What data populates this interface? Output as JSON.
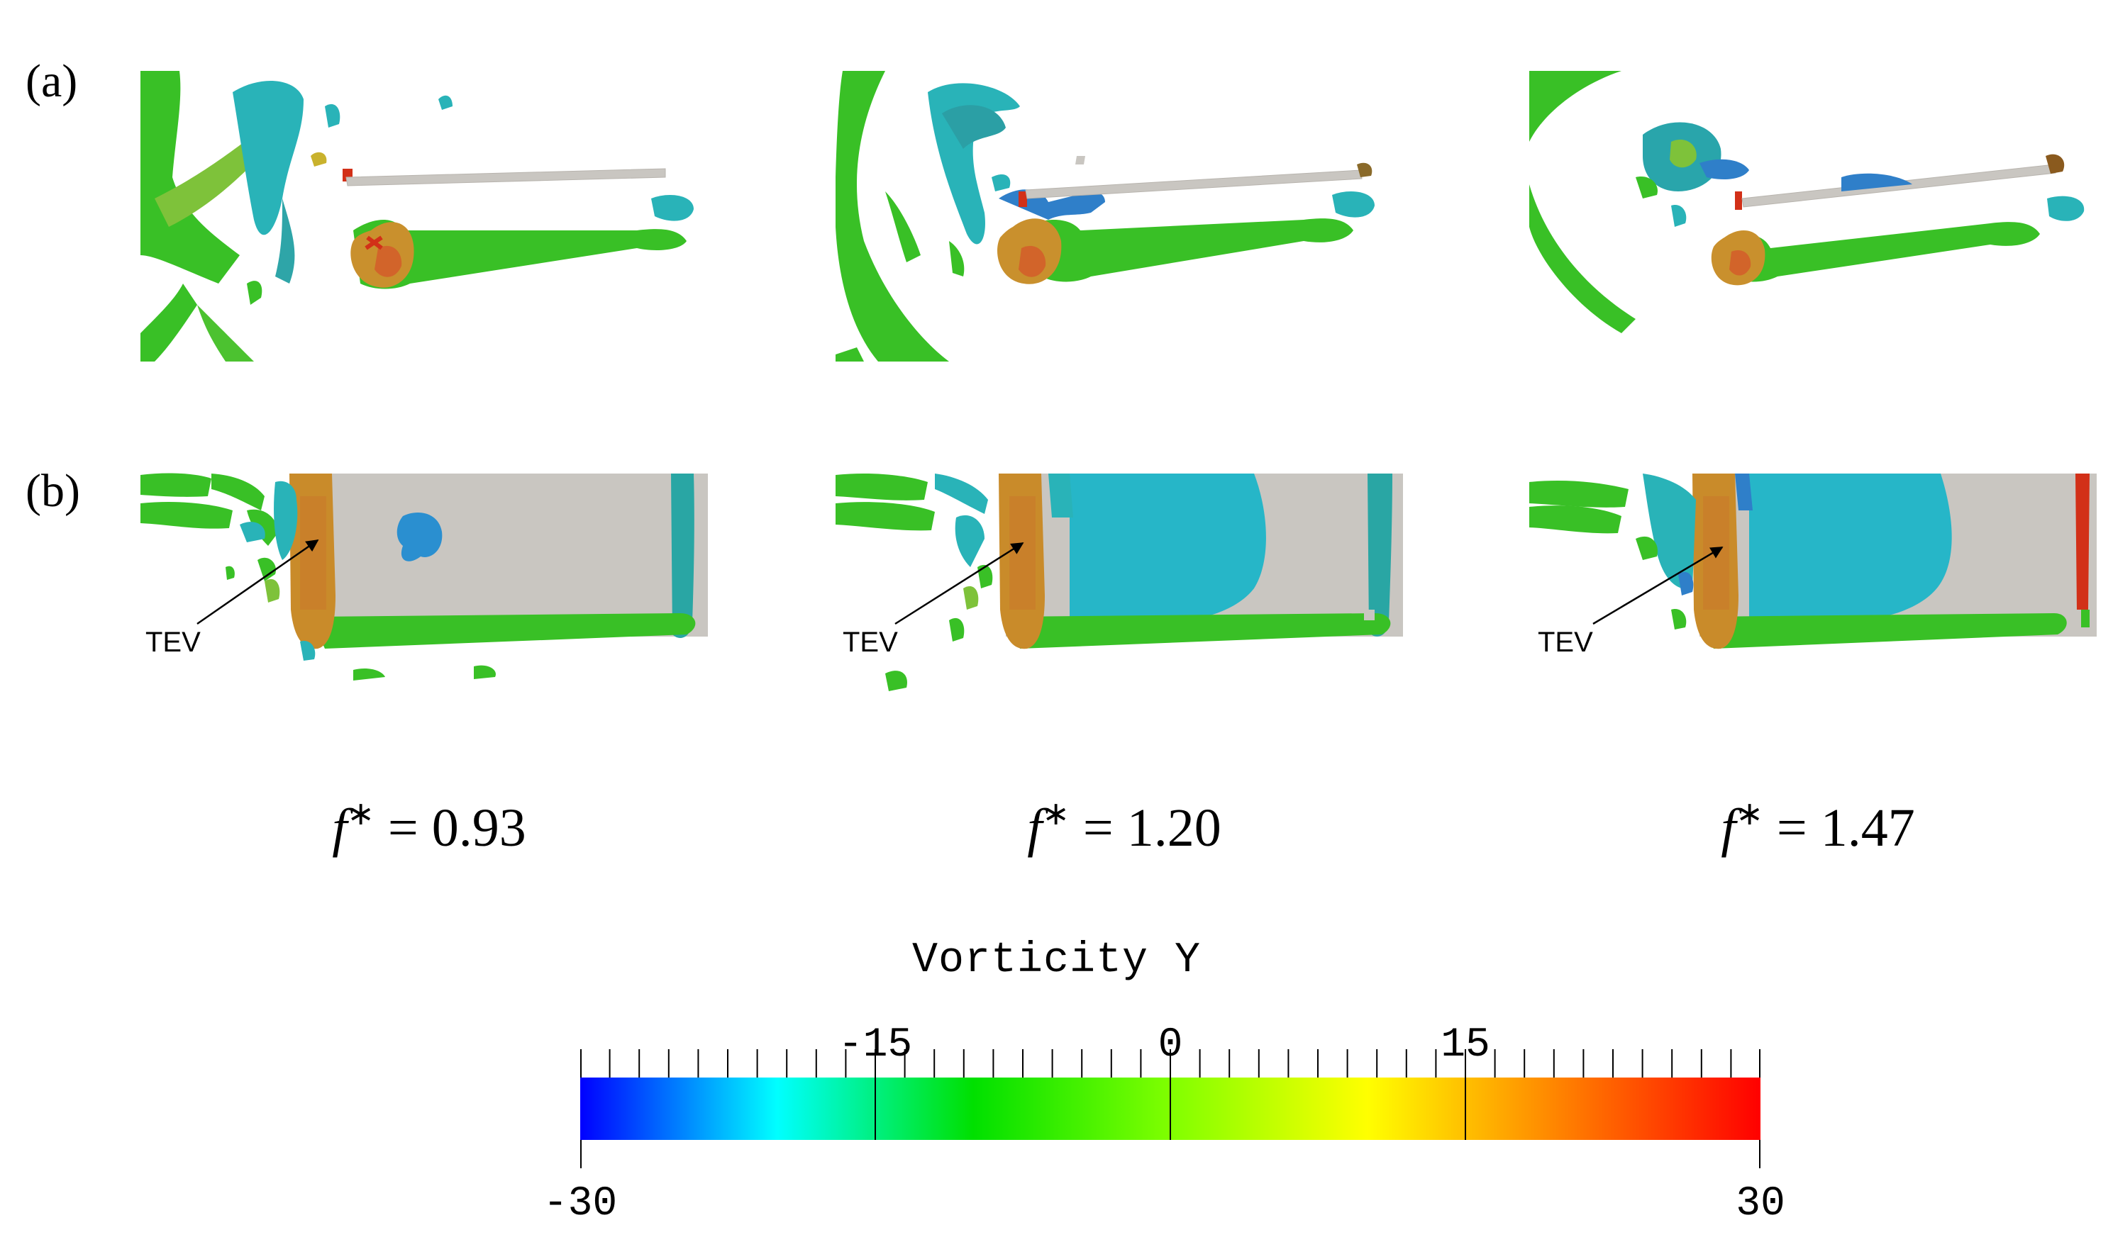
{
  "rows": [
    {
      "label": "(a)"
    },
    {
      "label": "(b)"
    }
  ],
  "annotation": "TEV",
  "frequencies": [
    {
      "symbol": "f",
      "sup": "∗",
      "value": "= 0.93"
    },
    {
      "symbol": "f",
      "sup": "∗",
      "value": "= 1.20"
    },
    {
      "symbol": "f",
      "sup": "∗",
      "value": "= 1.47"
    }
  ],
  "colorbar": {
    "title": "Vorticity Y",
    "min": -30,
    "max": 30,
    "labels_top": [
      "-15",
      "0",
      "15"
    ],
    "labels_top_values": [
      -15,
      0,
      15
    ],
    "label_min": "-30",
    "label_max": "30",
    "minor_ticks": 40,
    "gradient": [
      "#0000ff",
      "#00ffff",
      "#00e000",
      "#80ff00",
      "#ffff00",
      "#ff8000",
      "#ff0000"
    ]
  },
  "colors": {
    "iso_green": "#39c026",
    "iso_cyan": "#29b3b8",
    "iso_yellow": "#c9b22d",
    "iso_red": "#d23018",
    "plate_gray": "#c9c6c1"
  }
}
